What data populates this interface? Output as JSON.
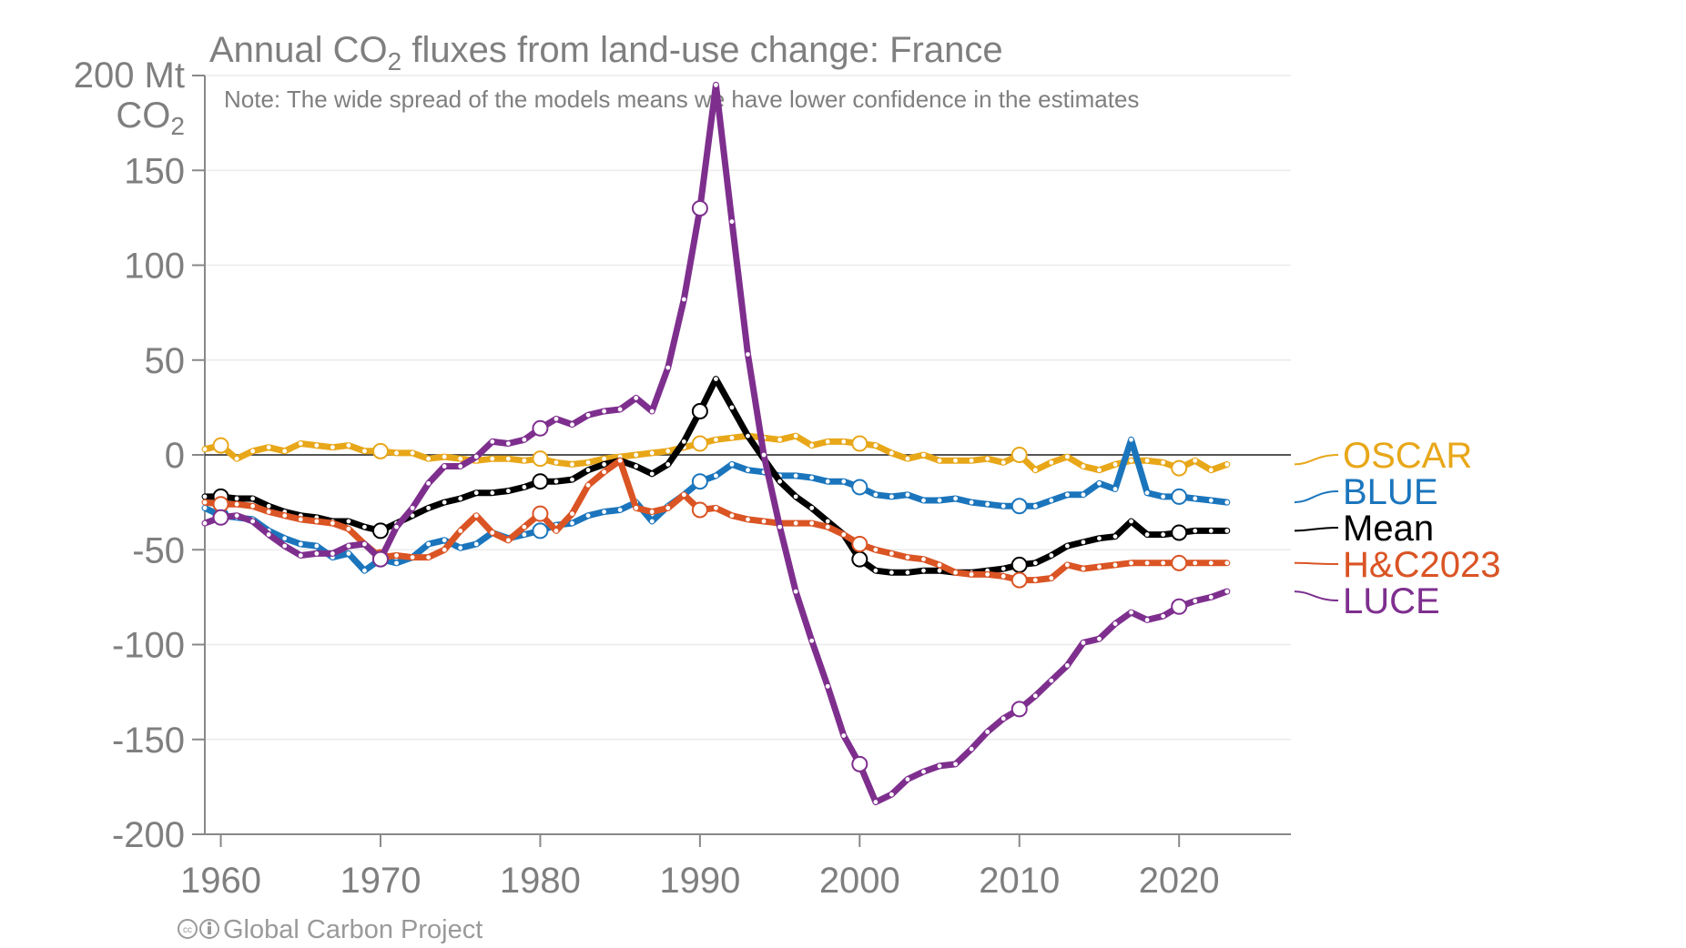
{
  "chart_data": {
    "type": "line",
    "title": {
      "prefix": "Annual CO",
      "sub": "2",
      "suffix": " fluxes from land-use change: France"
    },
    "note": "Note: The wide spread of the models means we have lower confidence in the estimates",
    "ylabel": {
      "line1": "200 Mt",
      "line2_prefix": "CO",
      "line2_sub": "2"
    },
    "credit": "Global Carbon Project",
    "x_range": [
      1959,
      2027
    ],
    "y_range": [
      -200,
      200
    ],
    "y_ticks": [
      150,
      100,
      50,
      0,
      -50,
      -100,
      -150,
      -200
    ],
    "x_ticks": [
      1960,
      1970,
      1980,
      1990,
      2000,
      2010,
      2020
    ],
    "grid": true,
    "legend_placement": "right",
    "series": [
      {
        "name": "OSCAR",
        "color": "#E8A719",
        "x": [
          1959,
          1960,
          1961,
          1962,
          1963,
          1964,
          1965,
          1966,
          1967,
          1968,
          1969,
          1970,
          1971,
          1972,
          1973,
          1974,
          1975,
          1976,
          1977,
          1978,
          1979,
          1980,
          1981,
          1982,
          1983,
          1984,
          1985,
          1986,
          1987,
          1988,
          1989,
          1990,
          1991,
          1992,
          1993,
          1994,
          1995,
          1996,
          1997,
          1998,
          1999,
          2000,
          2001,
          2002,
          2003,
          2004,
          2005,
          2006,
          2007,
          2008,
          2009,
          2010,
          2011,
          2012,
          2013,
          2014,
          2015,
          2016,
          2017,
          2018,
          2019,
          2020,
          2021,
          2022,
          2023
        ],
        "y": [
          3,
          5,
          -2,
          2,
          4,
          2,
          6,
          5,
          4,
          5,
          2,
          2,
          1,
          1,
          -2,
          -1,
          -2,
          -3,
          -2,
          -2,
          -3,
          -2,
          -4,
          -5,
          -4,
          -2,
          -1,
          0,
          1,
          2,
          4,
          6,
          8,
          9,
          10,
          9,
          8,
          10,
          5,
          7,
          7,
          6,
          5,
          1,
          -2,
          0,
          -3,
          -3,
          -3,
          -2,
          -4,
          0,
          -8,
          -4,
          -1,
          -6,
          -8,
          -5,
          -3,
          -3,
          -4,
          -7,
          -3,
          -8,
          -5
        ]
      },
      {
        "name": "BLUE",
        "color": "#1B75BC",
        "x": [
          1959,
          1960,
          1961,
          1962,
          1963,
          1964,
          1965,
          1966,
          1967,
          1968,
          1969,
          1970,
          1971,
          1972,
          1973,
          1974,
          1975,
          1976,
          1977,
          1978,
          1979,
          1980,
          1981,
          1982,
          1983,
          1984,
          1985,
          1986,
          1987,
          1988,
          1989,
          1990,
          1991,
          1992,
          1993,
          1994,
          1995,
          1996,
          1997,
          1998,
          1999,
          2000,
          2001,
          2002,
          2003,
          2004,
          2005,
          2006,
          2007,
          2008,
          2009,
          2010,
          2011,
          2012,
          2013,
          2014,
          2015,
          2016,
          2017,
          2018,
          2019,
          2020,
          2021,
          2022,
          2023
        ],
        "y": [
          -28,
          -32,
          -33,
          -34,
          -40,
          -44,
          -47,
          -48,
          -54,
          -52,
          -61,
          -55,
          -57,
          -54,
          -47,
          -45,
          -49,
          -47,
          -41,
          -44,
          -42,
          -40,
          -37,
          -36,
          -32,
          -30,
          -29,
          -25,
          -35,
          -27,
          -21,
          -14,
          -11,
          -5,
          -8,
          -9,
          -11,
          -11,
          -12,
          -14,
          -14,
          -17,
          -21,
          -22,
          -21,
          -24,
          -24,
          -23,
          -25,
          -26,
          -27,
          -27,
          -27,
          -24,
          -21,
          -21,
          -15,
          -18,
          8,
          -20,
          -22,
          -22,
          -23,
          -24,
          -25
        ]
      },
      {
        "name": "Mean",
        "color": "#000000",
        "x": [
          1959,
          1960,
          1961,
          1962,
          1963,
          1964,
          1965,
          1966,
          1967,
          1968,
          1969,
          1970,
          1971,
          1972,
          1973,
          1974,
          1975,
          1976,
          1977,
          1978,
          1979,
          1980,
          1981,
          1982,
          1983,
          1984,
          1985,
          1986,
          1987,
          1988,
          1989,
          1990,
          1991,
          1992,
          1993,
          1994,
          1995,
          1996,
          1997,
          1998,
          1999,
          2000,
          2001,
          2002,
          2003,
          2004,
          2005,
          2006,
          2007,
          2008,
          2009,
          2010,
          2011,
          2012,
          2013,
          2014,
          2015,
          2016,
          2017,
          2018,
          2019,
          2020,
          2021,
          2022,
          2023
        ],
        "y": [
          -22,
          -22,
          -23,
          -23,
          -27,
          -30,
          -32,
          -33,
          -35,
          -35,
          -38,
          -40,
          -36,
          -32,
          -28,
          -25,
          -23,
          -20,
          -20,
          -19,
          -17,
          -14,
          -14,
          -13,
          -8,
          -5,
          -3,
          -6,
          -10,
          -5,
          7,
          23,
          40,
          25,
          10,
          -2,
          -14,
          -22,
          -28,
          -35,
          -42,
          -55,
          -61,
          -62,
          -62,
          -61,
          -61,
          -62,
          -62,
          -61,
          -60,
          -58,
          -57,
          -53,
          -48,
          -46,
          -44,
          -43,
          -35,
          -42,
          -42,
          -41,
          -40,
          -40,
          -40
        ]
      },
      {
        "name": "H&C2023",
        "color": "#DA5424",
        "x": [
          1959,
          1960,
          1961,
          1962,
          1963,
          1964,
          1965,
          1966,
          1967,
          1968,
          1969,
          1970,
          1971,
          1972,
          1973,
          1974,
          1975,
          1976,
          1977,
          1978,
          1979,
          1980,
          1981,
          1982,
          1983,
          1984,
          1985,
          1986,
          1987,
          1988,
          1989,
          1990,
          1991,
          1992,
          1993,
          1994,
          1995,
          1996,
          1997,
          1998,
          1999,
          2000,
          2001,
          2002,
          2003,
          2004,
          2005,
          2006,
          2007,
          2008,
          2009,
          2010,
          2011,
          2012,
          2013,
          2014,
          2015,
          2016,
          2017,
          2018,
          2019,
          2020,
          2021,
          2022,
          2023
        ],
        "y": [
          -25,
          -26,
          -26,
          -27,
          -30,
          -32,
          -34,
          -35,
          -36,
          -39,
          -47,
          -54,
          -53,
          -54,
          -54,
          -50,
          -40,
          -32,
          -41,
          -45,
          -38,
          -31,
          -40,
          -31,
          -16,
          -9,
          -3,
          -28,
          -30,
          -28,
          -21,
          -29,
          -28,
          -32,
          -34,
          -35,
          -36,
          -36,
          -36,
          -38,
          -42,
          -47,
          -50,
          -52,
          -54,
          -55,
          -58,
          -62,
          -63,
          -63,
          -64,
          -66,
          -66,
          -65,
          -58,
          -60,
          -59,
          -58,
          -57,
          -57,
          -57,
          -57,
          -57,
          -57,
          -57
        ]
      },
      {
        "name": "LUCE",
        "color": "#7E2F8E",
        "x": [
          1959,
          1960,
          1961,
          1962,
          1963,
          1964,
          1965,
          1966,
          1967,
          1968,
          1969,
          1970,
          1971,
          1972,
          1973,
          1974,
          1975,
          1976,
          1977,
          1978,
          1979,
          1980,
          1981,
          1982,
          1983,
          1984,
          1985,
          1986,
          1987,
          1988,
          1989,
          1990,
          1991,
          1992,
          1993,
          1994,
          1995,
          1996,
          1997,
          1998,
          1999,
          2000,
          2001,
          2002,
          2003,
          2004,
          2005,
          2006,
          2007,
          2008,
          2009,
          2010,
          2011,
          2012,
          2013,
          2014,
          2015,
          2016,
          2017,
          2018,
          2019,
          2020,
          2021,
          2022,
          2023
        ],
        "y": [
          -36,
          -33,
          -32,
          -35,
          -42,
          -48,
          -53,
          -52,
          -52,
          -48,
          -47,
          -55,
          -38,
          -28,
          -15,
          -6,
          -6,
          -1,
          7,
          6,
          8,
          14,
          19,
          16,
          21,
          23,
          24,
          30,
          23,
          46,
          82,
          130,
          195,
          123,
          53,
          0,
          -38,
          -72,
          -98,
          -122,
          -148,
          -163,
          -183,
          -179,
          -171,
          -167,
          -164,
          -163,
          -155,
          -146,
          -139,
          -134,
          -127,
          -119,
          -111,
          -99,
          -97,
          -89,
          -83,
          -87,
          -85,
          -80,
          -77,
          -75,
          -72
        ]
      }
    ]
  }
}
